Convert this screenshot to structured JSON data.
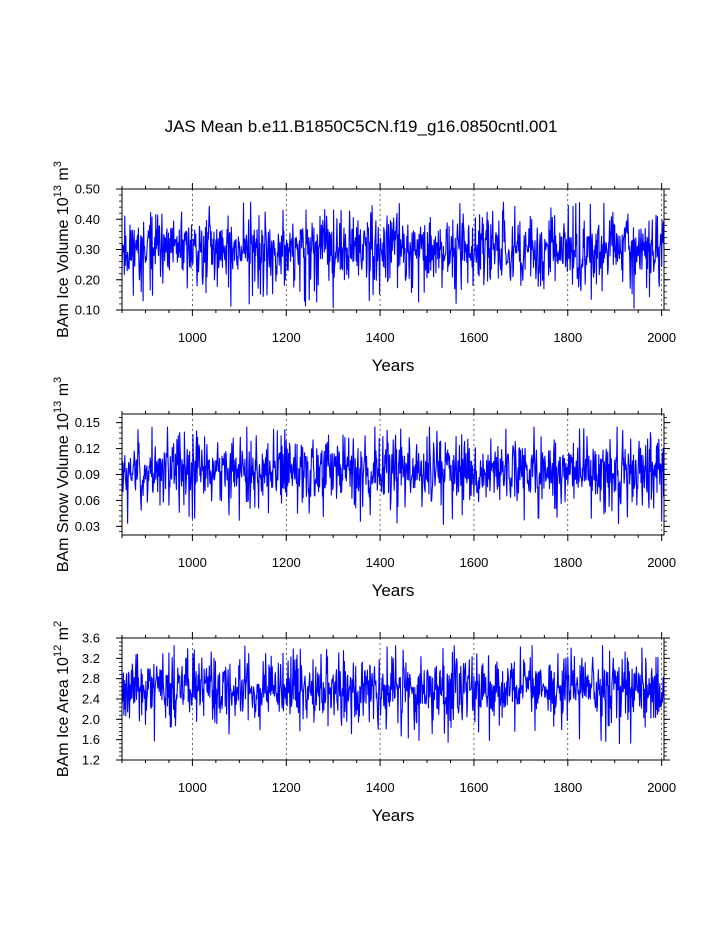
{
  "title": "JAS Mean b.e11.B1850C5CN.f19_g16.0850cntl.001",
  "line_color": "#0000ff",
  "chart_data": [
    {
      "type": "line",
      "title": "JAS Mean b.e11.B1850C5CN.f19_g16.0850cntl.001",
      "xlabel": "Years",
      "ylabel": "BAm Ice Volume 10^13 m^3",
      "ylabel_parts": {
        "main": "BAm Ice Volume 10",
        "exp": "13",
        "unit": " m",
        "unit_exp": "3"
      },
      "xlim": [
        850,
        2005
      ],
      "ylim": [
        0.1,
        0.5
      ],
      "xticks": [
        "1000",
        "1200",
        "1400",
        "1600",
        "1800",
        "2000"
      ],
      "yticks": [
        "0.10",
        "0.20",
        "0.30",
        "0.40",
        "0.50"
      ],
      "ytick_values": [
        0.1,
        0.2,
        0.3,
        0.4,
        0.5
      ],
      "grid_x": [
        1000,
        1200,
        1400,
        1600,
        1800,
        2000
      ],
      "series": [
        {
          "name": "BAm Ice Volume",
          "mean": 0.3,
          "amplitude": 0.065,
          "min": 0.1,
          "max": 0.47,
          "seed": 11
        }
      ]
    },
    {
      "type": "line",
      "xlabel": "Years",
      "ylabel": "BAm Snow Volume 10^13 m^3",
      "ylabel_parts": {
        "main": "BAm Snow Volume 10",
        "exp": "13",
        "unit": " m",
        "unit_exp": "3"
      },
      "xlim": [
        850,
        2005
      ],
      "ylim": [
        0.02,
        0.16
      ],
      "xticks": [
        "1000",
        "1200",
        "1400",
        "1600",
        "1800",
        "2000"
      ],
      "yticks": [
        "0.03",
        "0.06",
        "0.09",
        "0.12",
        "0.15"
      ],
      "ytick_values": [
        0.03,
        0.06,
        0.09,
        0.12,
        0.15
      ],
      "grid_x": [
        1000,
        1200,
        1400,
        1600,
        1800,
        2000
      ],
      "series": [
        {
          "name": "BAm Snow Volume",
          "mean": 0.095,
          "amplitude": 0.021,
          "min": 0.031,
          "max": 0.145,
          "seed": 23
        }
      ]
    },
    {
      "type": "line",
      "xlabel": "Years",
      "ylabel": "BAm Ice Area 10^12 m^2",
      "ylabel_parts": {
        "main": "BAm Ice Area 10",
        "exp": "12",
        "unit": " m",
        "unit_exp": "2"
      },
      "xlim": [
        850,
        2005
      ],
      "ylim": [
        1.2,
        3.6
      ],
      "xticks": [
        "1000",
        "1200",
        "1400",
        "1600",
        "1800",
        "2000"
      ],
      "yticks": [
        "1.2",
        "1.6",
        "2.0",
        "2.4",
        "2.8",
        "3.2",
        "3.6"
      ],
      "ytick_values": [
        1.2,
        1.6,
        2.0,
        2.4,
        2.8,
        3.2,
        3.6
      ],
      "grid_x": [
        1000,
        1200,
        1400,
        1600,
        1800,
        2000
      ],
      "series": [
        {
          "name": "BAm Ice Area",
          "mean": 2.6,
          "amplitude": 0.36,
          "min": 1.25,
          "max": 3.45,
          "seed": 37
        }
      ]
    }
  ]
}
